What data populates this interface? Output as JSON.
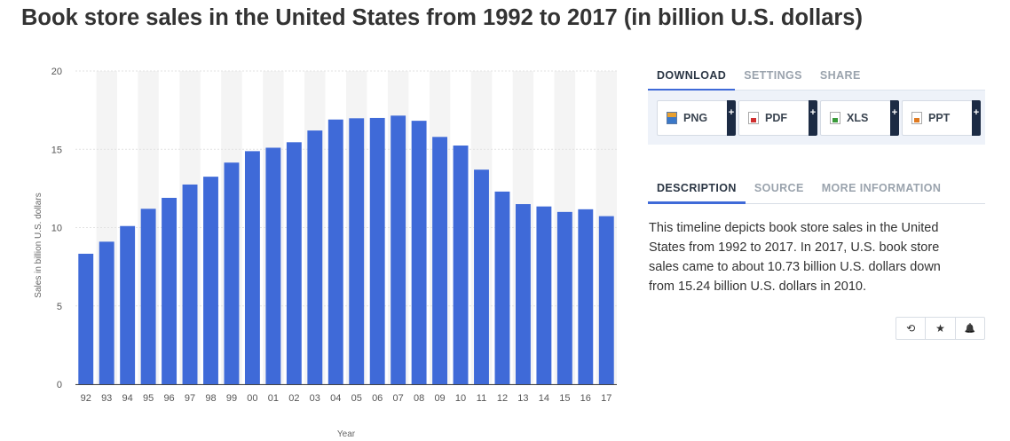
{
  "page": {
    "title": "Book store sales in the United States from 1992 to 2017 (in billion U.S. dollars)"
  },
  "download_tabs": [
    {
      "label": "DOWNLOAD",
      "active": true
    },
    {
      "label": "SETTINGS",
      "active": false
    },
    {
      "label": "SHARE",
      "active": false
    }
  ],
  "downloads": [
    {
      "label": "PNG",
      "icon": "png-file-icon",
      "plus": "+"
    },
    {
      "label": "PDF",
      "icon": "pdf-file-icon",
      "plus": "+"
    },
    {
      "label": "XLS",
      "icon": "xls-file-icon",
      "plus": "+"
    },
    {
      "label": "PPT",
      "icon": "ppt-file-icon",
      "plus": "+"
    }
  ],
  "info_tabs": [
    {
      "label": "DESCRIPTION",
      "active": true
    },
    {
      "label": "SOURCE",
      "active": false
    },
    {
      "label": "MORE INFORMATION",
      "active": false
    }
  ],
  "description": "This timeline depicts book store sales in the United States from 1992 to 2017. In 2017, U.S. book store sales came to about 10.73 billion U.S. dollars down from 15.24 billion U.S. dollars in 2010.",
  "actions": [
    {
      "name": "history-icon",
      "glyph": "⟲"
    },
    {
      "name": "star-icon",
      "glyph": "★"
    },
    {
      "name": "bell-icon",
      "glyph": "🔔"
    }
  ],
  "colors": {
    "bar": "#3f6ad8",
    "band": "#f4f4f4",
    "accent": "#3f6ad8"
  },
  "chart_data": {
    "type": "bar",
    "title": "Book store sales in the United States from 1992 to 2017 (in billion U.S. dollars)",
    "xlabel": "Year",
    "ylabel": "Sales in billion U.S. dollars",
    "ylim": [
      0,
      20
    ],
    "yticks": [
      0,
      5,
      10,
      15,
      20
    ],
    "categories": [
      "92",
      "93",
      "94",
      "95",
      "96",
      "97",
      "98",
      "99",
      "00",
      "01",
      "02",
      "03",
      "04",
      "05",
      "06",
      "07",
      "08",
      "09",
      "10",
      "11",
      "12",
      "13",
      "14",
      "15",
      "16",
      "17"
    ],
    "values": [
      8.33,
      9.1,
      10.1,
      11.2,
      11.9,
      12.75,
      13.25,
      14.15,
      14.88,
      15.1,
      15.45,
      16.2,
      16.9,
      16.98,
      17.0,
      17.15,
      16.82,
      15.79,
      15.24,
      13.7,
      12.3,
      11.5,
      11.35,
      11.0,
      11.17,
      10.73
    ],
    "grid": true,
    "legend": "none"
  }
}
